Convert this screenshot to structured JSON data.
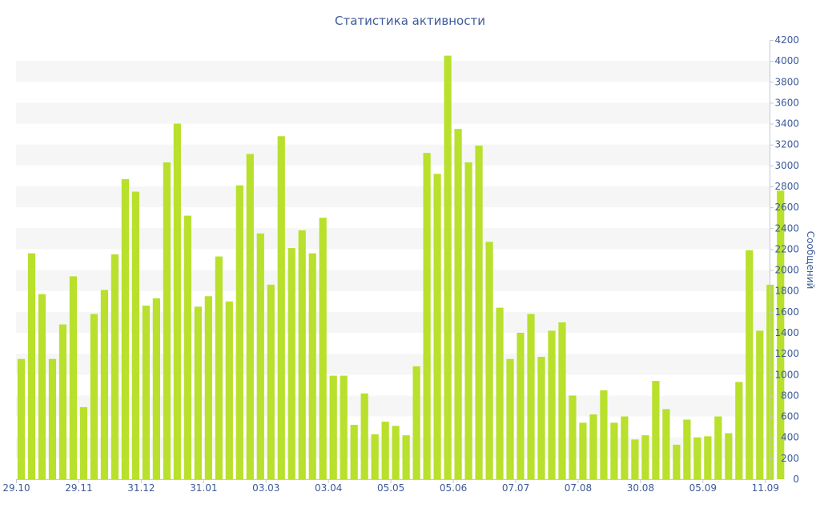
{
  "chart_data": {
    "type": "bar",
    "title": "Статистика активности",
    "ylabel": "Сообщений",
    "xlabel": "",
    "ylim": [
      0,
      4200
    ],
    "y_ticks": [
      0,
      200,
      400,
      600,
      800,
      1000,
      1200,
      1400,
      1600,
      1800,
      2000,
      2200,
      2400,
      2600,
      2800,
      3000,
      3200,
      3400,
      3600,
      3800,
      4000,
      4200
    ],
    "y_axis_side": "right",
    "x_tick_labels": [
      "29.10",
      "29.11",
      "31.12",
      "31.01",
      "03.03",
      "03.04",
      "05.05",
      "05.06",
      "07.07",
      "07.08",
      "30.08",
      "05.09",
      "11.09"
    ],
    "x_tick_bar_index": [
      0,
      6,
      12,
      18,
      24,
      30,
      36,
      42,
      48,
      54,
      60,
      66,
      72
    ],
    "grid": "alternating horizontal bands",
    "bar_color": "#b8e02c",
    "band_color": "#f6f6f6",
    "text_color": "#3d5a99",
    "values": [
      1150,
      2160,
      1770,
      1150,
      1480,
      1940,
      690,
      1580,
      1810,
      2150,
      2870,
      2750,
      1660,
      1730,
      3030,
      3400,
      2520,
      1650,
      1750,
      2130,
      1700,
      2810,
      3110,
      2350,
      1860,
      3280,
      2210,
      2380,
      2160,
      2500,
      990,
      990,
      520,
      820,
      430,
      550,
      510,
      420,
      1080,
      3120,
      2920,
      4050,
      3350,
      3030,
      3190,
      2270,
      1640,
      1150,
      1400,
      1580,
      1170,
      1420,
      1500,
      800,
      540,
      620,
      850,
      540,
      600,
      380,
      420,
      940,
      670,
      330,
      570,
      400,
      410,
      600,
      440,
      930,
      2190,
      1420,
      1860,
      2760
    ]
  }
}
